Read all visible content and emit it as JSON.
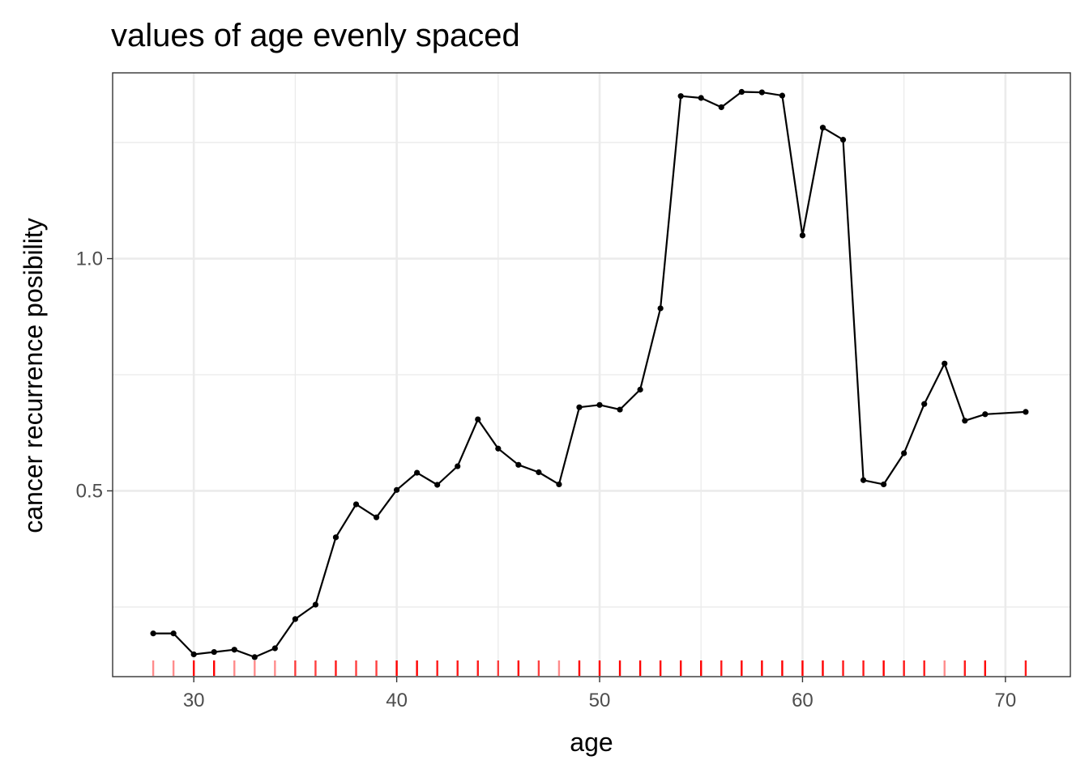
{
  "chart_data": {
    "type": "line",
    "title": "values of age evenly spaced",
    "xlabel": "age",
    "ylabel": "cancer recurrence posibility",
    "xlim": [
      26,
      73.2
    ],
    "ylim": [
      0.1,
      1.4
    ],
    "x_ticks": [
      30,
      40,
      50,
      60,
      70
    ],
    "x_tick_labels": [
      "30",
      "40",
      "50",
      "60",
      "70"
    ],
    "x_minor_ticks": [
      35,
      45,
      55,
      65
    ],
    "y_ticks": [
      0.5,
      1.0
    ],
    "y_tick_labels": [
      "0.5",
      "1.0"
    ],
    "y_minor_ticks": [
      0.25,
      0.75,
      1.25
    ],
    "grid": true,
    "series": [
      {
        "x": [
          28,
          29,
          30,
          31,
          32,
          33,
          34,
          35,
          36,
          37,
          38,
          39,
          40,
          41,
          42,
          43,
          44,
          45,
          46,
          47,
          48,
          49,
          50,
          51,
          52,
          53,
          54,
          55,
          56,
          57,
          58,
          59,
          60,
          61,
          62,
          63,
          64,
          65,
          66,
          67,
          68,
          69,
          71
        ],
        "y": [
          0.193,
          0.193,
          0.148,
          0.153,
          0.158,
          0.142,
          0.161,
          0.224,
          0.255,
          0.4,
          0.471,
          0.443,
          0.502,
          0.539,
          0.513,
          0.553,
          0.654,
          0.591,
          0.556,
          0.54,
          0.514,
          0.68,
          0.685,
          0.675,
          0.718,
          0.893,
          1.35,
          1.346,
          1.326,
          1.359,
          1.358,
          1.351,
          1.05,
          1.282,
          1.256,
          0.523,
          0.514,
          0.581,
          0.687,
          0.774,
          0.651,
          0.665,
          0.67
        ]
      }
    ],
    "rug": {
      "color": "#ff0000",
      "x": [
        28,
        29,
        30,
        31,
        32,
        33,
        34,
        35,
        36,
        37,
        38,
        39,
        40,
        41,
        42,
        43,
        44,
        45,
        46,
        47,
        48,
        49,
        50,
        51,
        52,
        53,
        54,
        55,
        56,
        57,
        58,
        59,
        60,
        61,
        62,
        63,
        64,
        65,
        66,
        67,
        68,
        69,
        71
      ],
      "opacity": [
        0.45,
        0.45,
        1,
        1,
        0.45,
        0.45,
        0.45,
        0.75,
        0.75,
        0.9,
        0.75,
        0.75,
        1,
        1,
        0.9,
        0.9,
        0.9,
        0.75,
        1,
        0.75,
        0.45,
        1,
        1,
        1,
        1,
        1,
        1,
        1,
        0.9,
        1,
        1,
        1,
        1,
        1,
        0.9,
        0.9,
        1,
        0.9,
        0.9,
        0.45,
        0.9,
        1,
        0.9
      ]
    }
  }
}
